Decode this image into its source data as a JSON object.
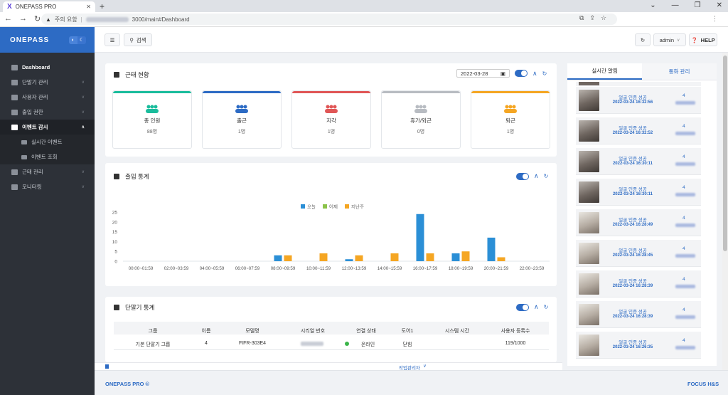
{
  "browser": {
    "tab_title": "ONEPASS PRO",
    "url_warning": "주의 요함",
    "url_path": "3000/main#Dashboard"
  },
  "sidebar": {
    "logo": "ONEPASS",
    "items": [
      {
        "label": "Dashboard"
      },
      {
        "label": "단말기 관리"
      },
      {
        "label": "사용자 관리"
      },
      {
        "label": "출입 권한"
      },
      {
        "label": "이벤트 감시"
      },
      {
        "label": "실시간 이벤트"
      },
      {
        "label": "이벤트 조회"
      },
      {
        "label": "근태 관리"
      },
      {
        "label": "모니터링"
      }
    ]
  },
  "topbar": {
    "search_label": "검색",
    "user_label": "admin",
    "help_label": "HELP"
  },
  "attendance": {
    "title": "근태 현황",
    "date": "2022-03-28",
    "stats": [
      {
        "label": "총 인원",
        "value": "88명",
        "color": "#1abc9c"
      },
      {
        "label": "출근",
        "value": "1명",
        "color": "#2d6bc4"
      },
      {
        "label": "지각",
        "value": "1명",
        "color": "#e05656"
      },
      {
        "label": "휴가/외근",
        "value": "0명",
        "color": "#b8bcc2"
      },
      {
        "label": "퇴근",
        "value": "1명",
        "color": "#f5a623"
      }
    ]
  },
  "access_stats": {
    "title": "출입 통계"
  },
  "chart_data": {
    "type": "bar",
    "categories": [
      "00:00~01:59",
      "02:00~03:59",
      "04:00~05:59",
      "06:00~07:59",
      "08:00~09:59",
      "10:00~11:59",
      "12:00~13:59",
      "14:00~15:59",
      "16:00~17:59",
      "18:00~19:59",
      "20:00~21:59",
      "22:00~23:59"
    ],
    "series": [
      {
        "name": "오늘",
        "color": "#2b8fd6",
        "values": [
          0,
          0,
          0,
          0,
          3,
          0,
          1,
          0,
          24,
          4,
          12,
          0
        ]
      },
      {
        "name": "어제",
        "color": "#8bc34a",
        "values": [
          0,
          0,
          0,
          0,
          0,
          0,
          0,
          0,
          0,
          0,
          0,
          0
        ]
      },
      {
        "name": "지난주",
        "color": "#f5a623",
        "values": [
          0,
          0,
          0,
          0,
          3,
          4,
          3,
          4,
          4,
          5,
          2,
          0
        ]
      }
    ],
    "yticks": [
      0,
      5,
      10,
      15,
      20,
      25
    ],
    "ylim": [
      0,
      25
    ],
    "legend": "top-center"
  },
  "device_stats": {
    "title": "단말기 통계",
    "headers": [
      "그룹",
      "이름",
      "모델명",
      "시리얼 번호",
      "연결 상태",
      "도어1",
      "시스템 시간",
      "사용자 등록수"
    ],
    "rows": [
      {
        "group": "기본 단말기 그룹",
        "name": "4",
        "model": "FIFR-303E4",
        "status": "온라인",
        "door": "닫힘",
        "users": "119/1000"
      }
    ]
  },
  "right_panel": {
    "tab_realtime": "실시간 알림",
    "tab_comm": "통화 관리",
    "alerts": [
      {
        "text": "얼굴 인증 성공",
        "time": "2022-03-24 16:32:56",
        "num": "4"
      },
      {
        "text": "얼굴 인증 성공",
        "time": "2022-03-24 16:32:52",
        "num": "4"
      },
      {
        "text": "얼굴 인증 성공",
        "time": "2022-03-24 16:30:11",
        "num": "4"
      },
      {
        "text": "얼굴 인증 성공",
        "time": "2022-03-24 16:30:11",
        "num": "4"
      },
      {
        "text": "얼굴 인증 성공",
        "time": "2022-03-24 16:28:49",
        "num": "4"
      },
      {
        "text": "얼굴 인증 성공",
        "time": "2022-03-24 16:28:45",
        "num": "4"
      },
      {
        "text": "얼굴 인증 성공",
        "time": "2022-03-24 16:28:39",
        "num": "4"
      },
      {
        "text": "얼굴 인증 성공",
        "time": "2022-03-24 16:28:39",
        "num": "4"
      },
      {
        "text": "얼굴 인증 성공",
        "time": "2022-03-24 16:26:35",
        "num": "4"
      }
    ]
  },
  "bottom": {
    "task_manager": "작업관리자",
    "footer_left": "ONEPASS PRO ©",
    "footer_right": "FOCUS H&S"
  }
}
